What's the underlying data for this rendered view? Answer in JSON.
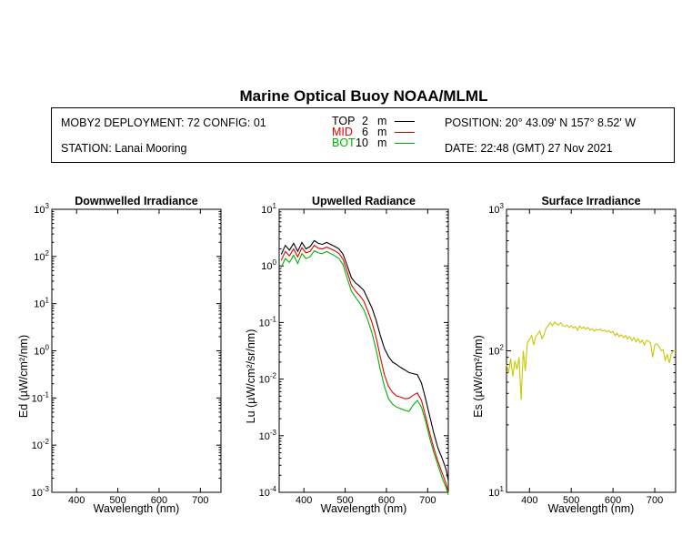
{
  "header": {
    "title": "Marine Optical Buoy NOAA/MLML",
    "deployment": "MOBY2 DEPLOYMENT: 72 CONFIG: 01",
    "station": "STATION: Lanai Mooring",
    "position": "POSITION: 20° 43.09' N   157° 8.52' W",
    "date": "DATE: 22:48 (GMT) 27 Nov 2021",
    "legend": [
      {
        "name": "TOP",
        "depth": "2",
        "unit": "m",
        "color": "#000000"
      },
      {
        "name": "MID",
        "depth": "6",
        "unit": "m",
        "color": "#e00000"
      },
      {
        "name": "BOT",
        "depth": "10",
        "unit": "m",
        "color": "#00b000"
      }
    ]
  },
  "chart_data": [
    {
      "type": "line",
      "title": "Downwelled Irradiance",
      "xlabel": "Wavelength (nm)",
      "ylabel": "Ed",
      "ylabel_unit": "(µW/cm²/nm)",
      "xlim": [
        340,
        750
      ],
      "ylim_log10": [
        -3,
        3
      ],
      "x_ticks": [
        400,
        500,
        600,
        700
      ],
      "y_ticks_exp": [
        -3,
        -2,
        -1,
        0,
        1,
        2,
        3
      ],
      "series": []
    },
    {
      "type": "line",
      "title": "Upwelled Radiance",
      "xlabel": "Wavelength (nm)",
      "ylabel": "Lu",
      "ylabel_unit": "(µW/cm²/sr/nm)",
      "xlim": [
        340,
        750
      ],
      "ylim_log10": [
        -4,
        1
      ],
      "x_ticks": [
        400,
        500,
        600,
        700
      ],
      "y_ticks_exp": [
        -4,
        -3,
        -2,
        -1,
        0,
        1
      ],
      "series": [
        {
          "name": "TOP",
          "color": "#000000",
          "x": [
            345,
            355,
            365,
            375,
            385,
            395,
            405,
            415,
            425,
            435,
            445,
            455,
            465,
            475,
            485,
            495,
            505,
            515,
            525,
            535,
            545,
            555,
            565,
            575,
            585,
            595,
            605,
            615,
            625,
            635,
            645,
            655,
            665,
            675,
            685,
            695,
            705,
            715,
            725,
            735,
            745,
            750
          ],
          "y": [
            1.6,
            2.3,
            1.9,
            2.5,
            1.8,
            2.6,
            2.0,
            2.2,
            2.8,
            2.5,
            2.4,
            2.6,
            2.4,
            2.2,
            2.0,
            1.6,
            1.0,
            0.62,
            0.5,
            0.44,
            0.37,
            0.26,
            0.18,
            0.11,
            0.06,
            0.035,
            0.025,
            0.02,
            0.018,
            0.016,
            0.0145,
            0.013,
            0.0125,
            0.012,
            0.0085,
            0.0045,
            0.0022,
            0.0011,
            0.0006,
            0.0004,
            0.00025,
            0.00016
          ]
        },
        {
          "name": "MID",
          "color": "#e00000",
          "x": [
            345,
            355,
            365,
            375,
            385,
            395,
            405,
            415,
            425,
            435,
            445,
            455,
            465,
            475,
            485,
            495,
            505,
            515,
            525,
            535,
            545,
            555,
            565,
            575,
            585,
            595,
            605,
            615,
            625,
            635,
            645,
            655,
            665,
            675,
            685,
            695,
            705,
            715,
            725,
            735,
            745,
            750
          ],
          "y": [
            1.25,
            1.8,
            1.5,
            2.0,
            1.45,
            2.1,
            1.7,
            1.8,
            2.3,
            2.05,
            2.0,
            2.15,
            2.0,
            1.85,
            1.65,
            1.3,
            0.78,
            0.46,
            0.36,
            0.3,
            0.24,
            0.16,
            0.1,
            0.055,
            0.025,
            0.012,
            0.0075,
            0.0058,
            0.005,
            0.0048,
            0.0045,
            0.0046,
            0.0052,
            0.0057,
            0.0042,
            0.0022,
            0.0011,
            0.0006,
            0.00035,
            0.00022,
            0.00014,
            0.0001
          ]
        },
        {
          "name": "BOT",
          "color": "#00b000",
          "x": [
            345,
            355,
            365,
            375,
            385,
            395,
            405,
            415,
            425,
            435,
            445,
            455,
            465,
            475,
            485,
            495,
            505,
            515,
            525,
            535,
            545,
            555,
            565,
            575,
            585,
            595,
            605,
            615,
            625,
            635,
            645,
            655,
            665,
            675,
            685,
            695,
            705,
            715,
            725,
            735,
            745,
            750
          ],
          "y": [
            0.95,
            1.35,
            1.15,
            1.55,
            1.1,
            1.65,
            1.35,
            1.45,
            1.85,
            1.7,
            1.65,
            1.8,
            1.65,
            1.5,
            1.35,
            1.05,
            0.6,
            0.36,
            0.28,
            0.22,
            0.17,
            0.11,
            0.065,
            0.033,
            0.015,
            0.0075,
            0.0045,
            0.0036,
            0.0032,
            0.003,
            0.0028,
            0.0027,
            0.0035,
            0.0042,
            0.0032,
            0.0018,
            0.0009,
            0.0005,
            0.0003,
            0.00018,
            0.00012,
            9e-05
          ]
        }
      ]
    },
    {
      "type": "line",
      "title": "Surface Irradiance",
      "xlabel": "Wavelength (nm)",
      "ylabel": "Es",
      "ylabel_unit": "(µW/cm²/nm)",
      "xlim": [
        345,
        750
      ],
      "ylim_log10": [
        1,
        3
      ],
      "x_ticks": [
        400,
        500,
        600,
        700
      ],
      "y_ticks_exp": [
        1,
        2,
        3
      ],
      "series": [
        {
          "name": "Es",
          "color": "#c8c800",
          "x": [
            345,
            350,
            355,
            360,
            365,
            370,
            375,
            380,
            385,
            390,
            395,
            400,
            405,
            410,
            415,
            420,
            425,
            430,
            435,
            440,
            445,
            450,
            455,
            460,
            465,
            470,
            475,
            480,
            485,
            490,
            495,
            500,
            505,
            510,
            515,
            520,
            525,
            530,
            535,
            540,
            545,
            550,
            555,
            560,
            565,
            570,
            575,
            580,
            585,
            590,
            595,
            600,
            605,
            610,
            615,
            620,
            625,
            630,
            635,
            640,
            645,
            650,
            655,
            660,
            665,
            670,
            675,
            680,
            685,
            690,
            695,
            700,
            705,
            710,
            715,
            720,
            725,
            730,
            735,
            740,
            745,
            750
          ],
          "y": [
            80,
            70,
            88,
            66,
            85,
            74,
            90,
            45,
            100,
            72,
            115,
            120,
            128,
            110,
            126,
            132,
            138,
            122,
            130,
            145,
            150,
            158,
            150,
            160,
            155,
            152,
            158,
            150,
            148,
            152,
            146,
            150,
            145,
            148,
            140,
            150,
            144,
            147,
            142,
            146,
            140,
            143,
            138,
            142,
            140,
            142,
            138,
            140,
            136,
            139,
            134,
            137,
            128,
            133,
            126,
            130,
            124,
            128,
            122,
            126,
            118,
            124,
            116,
            122,
            114,
            119,
            110,
            118,
            117,
            114,
            90,
            110,
            112,
            108,
            100,
            102,
            86,
            94,
            82,
            96,
            100,
            100
          ]
        }
      ]
    }
  ]
}
